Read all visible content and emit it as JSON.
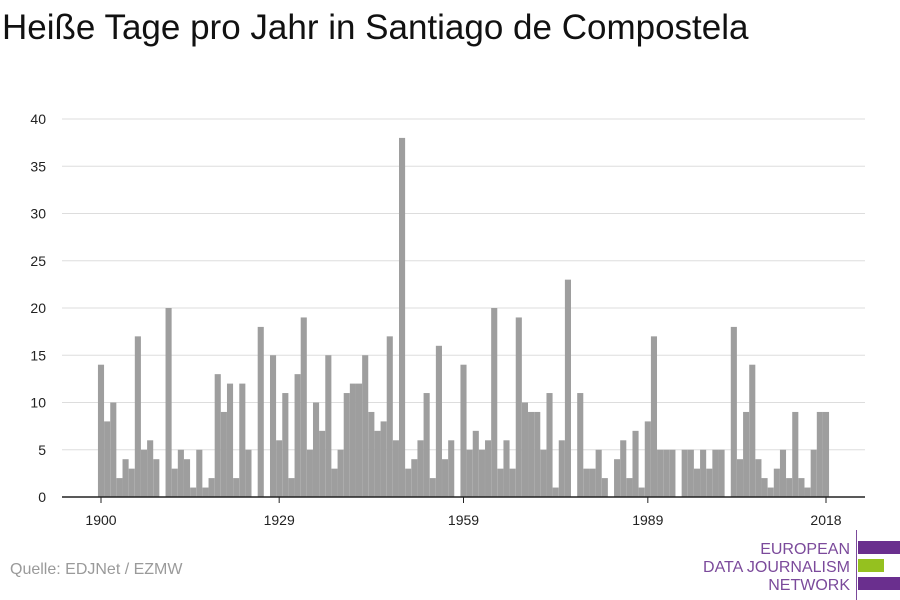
{
  "title": "Heiße Tage pro Jahr in Santiago de Compostela",
  "source": "Quelle: EDJNet / EZMW",
  "logo": {
    "line1": "EUROPEAN",
    "line2": "DATA JOURNALISM",
    "line3": "NETWORK",
    "text_color": "#7b4a9b",
    "bar_colors": [
      "#6a2f8e",
      "#95c11f",
      "#6a2f8e"
    ]
  },
  "colors": {
    "bar": "#9e9e9e",
    "grid": "#dddddd",
    "axis": "#222222"
  },
  "chart_data": {
    "type": "bar",
    "title": "Heiße Tage pro Jahr in Santiago de Compostela",
    "xlabel": "",
    "ylabel": "",
    "x_start": 1900,
    "x_end": 2018,
    "x_ticks": [
      1900,
      1929,
      1959,
      1989,
      2018
    ],
    "y_ticks": [
      0,
      5,
      10,
      15,
      20,
      25,
      30,
      35,
      40
    ],
    "ylim": [
      0,
      40
    ],
    "grid": true,
    "values": [
      14,
      8,
      10,
      2,
      4,
      3,
      17,
      5,
      6,
      4,
      0,
      20,
      3,
      5,
      4,
      1,
      5,
      1,
      2,
      13,
      9,
      12,
      2,
      12,
      5,
      0,
      18,
      0,
      15,
      6,
      11,
      2,
      13,
      19,
      5,
      10,
      7,
      15,
      3,
      5,
      11,
      12,
      12,
      15,
      9,
      7,
      8,
      17,
      6,
      38,
      3,
      4,
      6,
      11,
      2,
      16,
      4,
      6,
      0,
      14,
      5,
      7,
      5,
      6,
      20,
      3,
      6,
      3,
      19,
      10,
      9,
      9,
      5,
      11,
      1,
      6,
      23,
      0,
      11,
      3,
      3,
      5,
      2,
      0,
      4,
      6,
      2,
      7,
      1,
      8,
      17,
      5,
      5,
      5,
      0,
      5,
      5,
      3,
      5,
      3,
      5,
      5,
      0,
      18,
      4,
      9,
      14,
      4,
      2,
      1,
      3,
      5,
      2,
      9,
      2,
      1,
      5,
      9,
      9
    ]
  }
}
